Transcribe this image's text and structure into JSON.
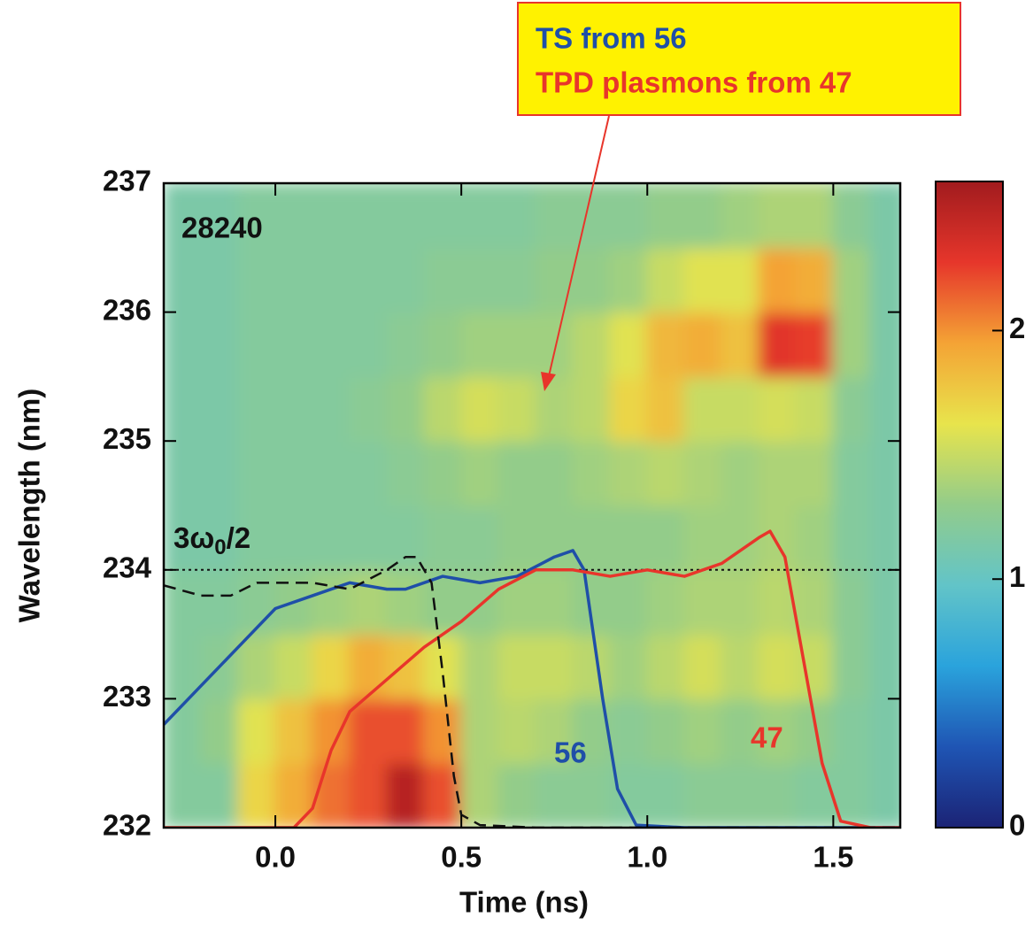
{
  "chart_data": {
    "type": "heatmap",
    "xlabel": "Time (ns)",
    "ylabel": "Wavelength (nm)",
    "xlim": [
      -0.3,
      1.68
    ],
    "ylim": [
      232,
      237
    ],
    "xticks": [
      {
        "value": 0,
        "label": "0.0"
      },
      {
        "value": 0.5,
        "label": "0.5"
      },
      {
        "value": 1,
        "label": "1.0"
      },
      {
        "value": 1.5,
        "label": "1.5"
      }
    ],
    "yticks": [
      232,
      233,
      234,
      235,
      236,
      237
    ],
    "x_centers": [
      -0.25,
      -0.15,
      -0.05,
      0.05,
      0.15,
      0.25,
      0.35,
      0.45,
      0.55,
      0.65,
      0.75,
      0.85,
      0.95,
      1.05,
      1.15,
      1.25,
      1.35,
      1.45,
      1.55,
      1.65
    ],
    "y_centers": [
      232.25,
      232.75,
      233.25,
      233.75,
      234.25,
      234.75,
      235.25,
      235.75,
      236.25,
      236.75
    ],
    "z": [
      [
        1.2,
        1.2,
        1.7,
        1.9,
        2.1,
        2.2,
        2.5,
        2.2,
        1.4,
        1.3,
        1.25,
        1.25,
        1.2,
        1.2,
        1.25,
        1.25,
        1.25,
        1.2,
        1.2,
        1.15
      ],
      [
        1.2,
        1.3,
        1.6,
        1.8,
        2.0,
        2.2,
        2.2,
        2.0,
        1.4,
        1.45,
        1.4,
        1.3,
        1.25,
        1.3,
        1.35,
        1.3,
        1.35,
        1.3,
        1.2,
        1.15
      ],
      [
        1.2,
        1.25,
        1.4,
        1.5,
        1.7,
        1.9,
        1.8,
        1.6,
        1.4,
        1.5,
        1.5,
        1.45,
        1.35,
        1.45,
        1.55,
        1.45,
        1.55,
        1.5,
        1.25,
        1.15
      ],
      [
        1.2,
        1.2,
        1.25,
        1.3,
        1.35,
        1.4,
        1.35,
        1.3,
        1.3,
        1.35,
        1.35,
        1.3,
        1.3,
        1.35,
        1.4,
        1.4,
        1.45,
        1.4,
        1.25,
        1.15
      ],
      [
        1.15,
        1.15,
        1.2,
        1.2,
        1.2,
        1.2,
        1.2,
        1.25,
        1.25,
        1.3,
        1.3,
        1.3,
        1.3,
        1.3,
        1.35,
        1.35,
        1.4,
        1.35,
        1.2,
        1.15
      ],
      [
        1.15,
        1.15,
        1.2,
        1.2,
        1.2,
        1.2,
        1.25,
        1.3,
        1.35,
        1.3,
        1.3,
        1.35,
        1.4,
        1.45,
        1.4,
        1.35,
        1.4,
        1.4,
        1.2,
        1.15
      ],
      [
        1.15,
        1.15,
        1.2,
        1.2,
        1.2,
        1.25,
        1.3,
        1.45,
        1.55,
        1.5,
        1.4,
        1.45,
        1.7,
        1.8,
        1.5,
        1.5,
        1.55,
        1.5,
        1.25,
        1.15
      ],
      [
        1.15,
        1.15,
        1.2,
        1.2,
        1.2,
        1.2,
        1.25,
        1.3,
        1.35,
        1.35,
        1.35,
        1.45,
        1.6,
        1.85,
        1.9,
        1.8,
        2.3,
        2.25,
        1.35,
        1.15
      ],
      [
        1.15,
        1.15,
        1.2,
        1.2,
        1.2,
        1.2,
        1.2,
        1.25,
        1.25,
        1.25,
        1.3,
        1.3,
        1.35,
        1.5,
        1.6,
        1.6,
        1.95,
        1.9,
        1.35,
        1.15
      ],
      [
        1.15,
        1.15,
        1.2,
        1.2,
        1.2,
        1.2,
        1.2,
        1.2,
        1.2,
        1.2,
        1.25,
        1.25,
        1.25,
        1.3,
        1.3,
        1.35,
        1.4,
        1.4,
        1.25,
        1.15
      ]
    ],
    "colormap": [
      "#1b2375",
      "#1f55b4",
      "#2aa3dc",
      "#62c4c8",
      "#93cc8a",
      "#e8e44c",
      "#f4a335",
      "#e6362b",
      "#a11b1e"
    ],
    "colorbar": {
      "lim": [
        0,
        2.6
      ],
      "ticks": [
        0,
        1,
        2
      ]
    },
    "series": [
      {
        "name": "56",
        "color": "#1f4fa8",
        "x": [
          -0.3,
          -0.2,
          -0.1,
          0.0,
          0.1,
          0.2,
          0.3,
          0.35,
          0.45,
          0.55,
          0.65,
          0.75,
          0.8,
          0.83,
          0.88,
          0.92,
          0.97,
          1.1,
          1.68
        ],
        "values": [
          232.8,
          233.1,
          233.4,
          233.7,
          233.8,
          233.9,
          233.85,
          233.85,
          233.95,
          233.9,
          233.95,
          234.1,
          234.15,
          234.0,
          233.0,
          232.3,
          232.02,
          232.0,
          232.0
        ]
      },
      {
        "name": "47",
        "color": "#e8352b",
        "x": [
          -0.3,
          0.05,
          0.1,
          0.15,
          0.2,
          0.3,
          0.4,
          0.5,
          0.6,
          0.7,
          0.8,
          0.9,
          1.0,
          1.1,
          1.2,
          1.3,
          1.33,
          1.37,
          1.42,
          1.47,
          1.52,
          1.6,
          1.68
        ],
        "values": [
          232.0,
          232.0,
          232.15,
          232.6,
          232.9,
          233.15,
          233.4,
          233.6,
          233.85,
          234.0,
          234.0,
          233.95,
          234.0,
          233.95,
          234.05,
          234.25,
          234.3,
          234.1,
          233.3,
          232.5,
          232.05,
          232.0,
          232.0
        ]
      },
      {
        "color": "#111111",
        "dashed": true,
        "x": [
          -0.3,
          -0.2,
          -0.12,
          -0.05,
          0.1,
          0.2,
          0.3,
          0.35,
          0.38,
          0.42,
          0.45,
          0.48,
          0.5,
          0.55,
          0.7,
          1.68
        ],
        "values": [
          233.88,
          233.8,
          233.8,
          233.9,
          233.9,
          233.85,
          234.0,
          234.1,
          234.1,
          233.9,
          233.2,
          232.4,
          232.1,
          232.02,
          232.0,
          232.0
        ]
      }
    ],
    "hline": {
      "value": 234,
      "label": [
        "3ω",
        "0",
        "/2"
      ]
    },
    "shot_label": "28240",
    "callout": [
      "TS from 56",
      "TPD plasmons from 47"
    ]
  }
}
